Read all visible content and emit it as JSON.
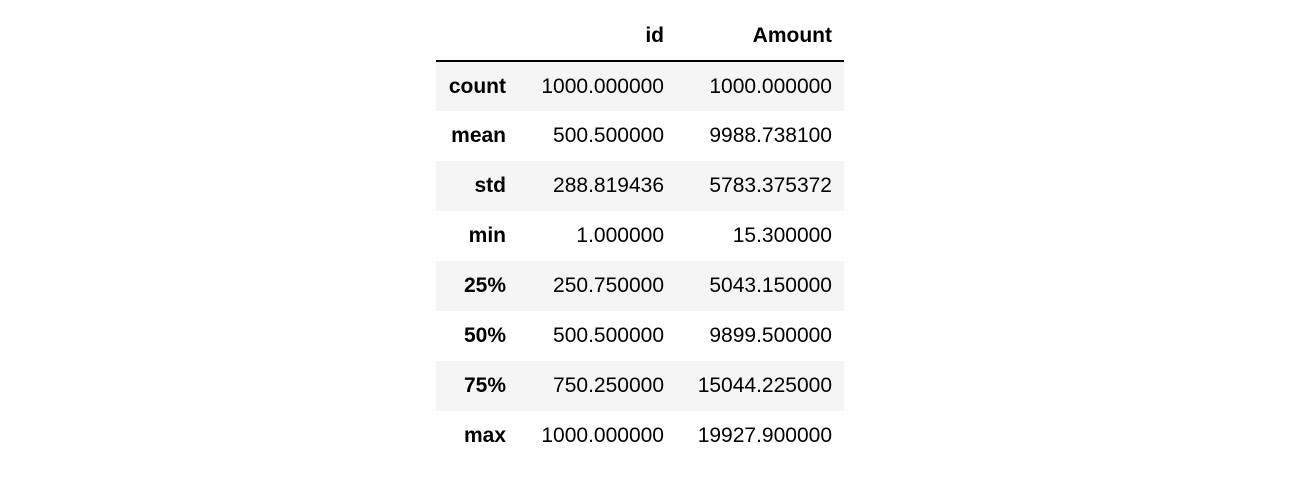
{
  "table": {
    "columns": [
      "",
      "id",
      "Amount"
    ],
    "rows": [
      {
        "label": "count",
        "id": "1000.000000",
        "amount": "1000.000000"
      },
      {
        "label": "mean",
        "id": "500.500000",
        "amount": "9988.738100"
      },
      {
        "label": "std",
        "id": "288.819436",
        "amount": "5783.375372"
      },
      {
        "label": "min",
        "id": "1.000000",
        "amount": "15.300000"
      },
      {
        "label": "25%",
        "id": "250.750000",
        "amount": "5043.150000"
      },
      {
        "label": "50%",
        "id": "500.500000",
        "amount": "9899.500000"
      },
      {
        "label": "75%",
        "id": "750.250000",
        "amount": "15044.225000"
      },
      {
        "label": "max",
        "id": "1000.000000",
        "amount": "19927.900000"
      }
    ]
  }
}
